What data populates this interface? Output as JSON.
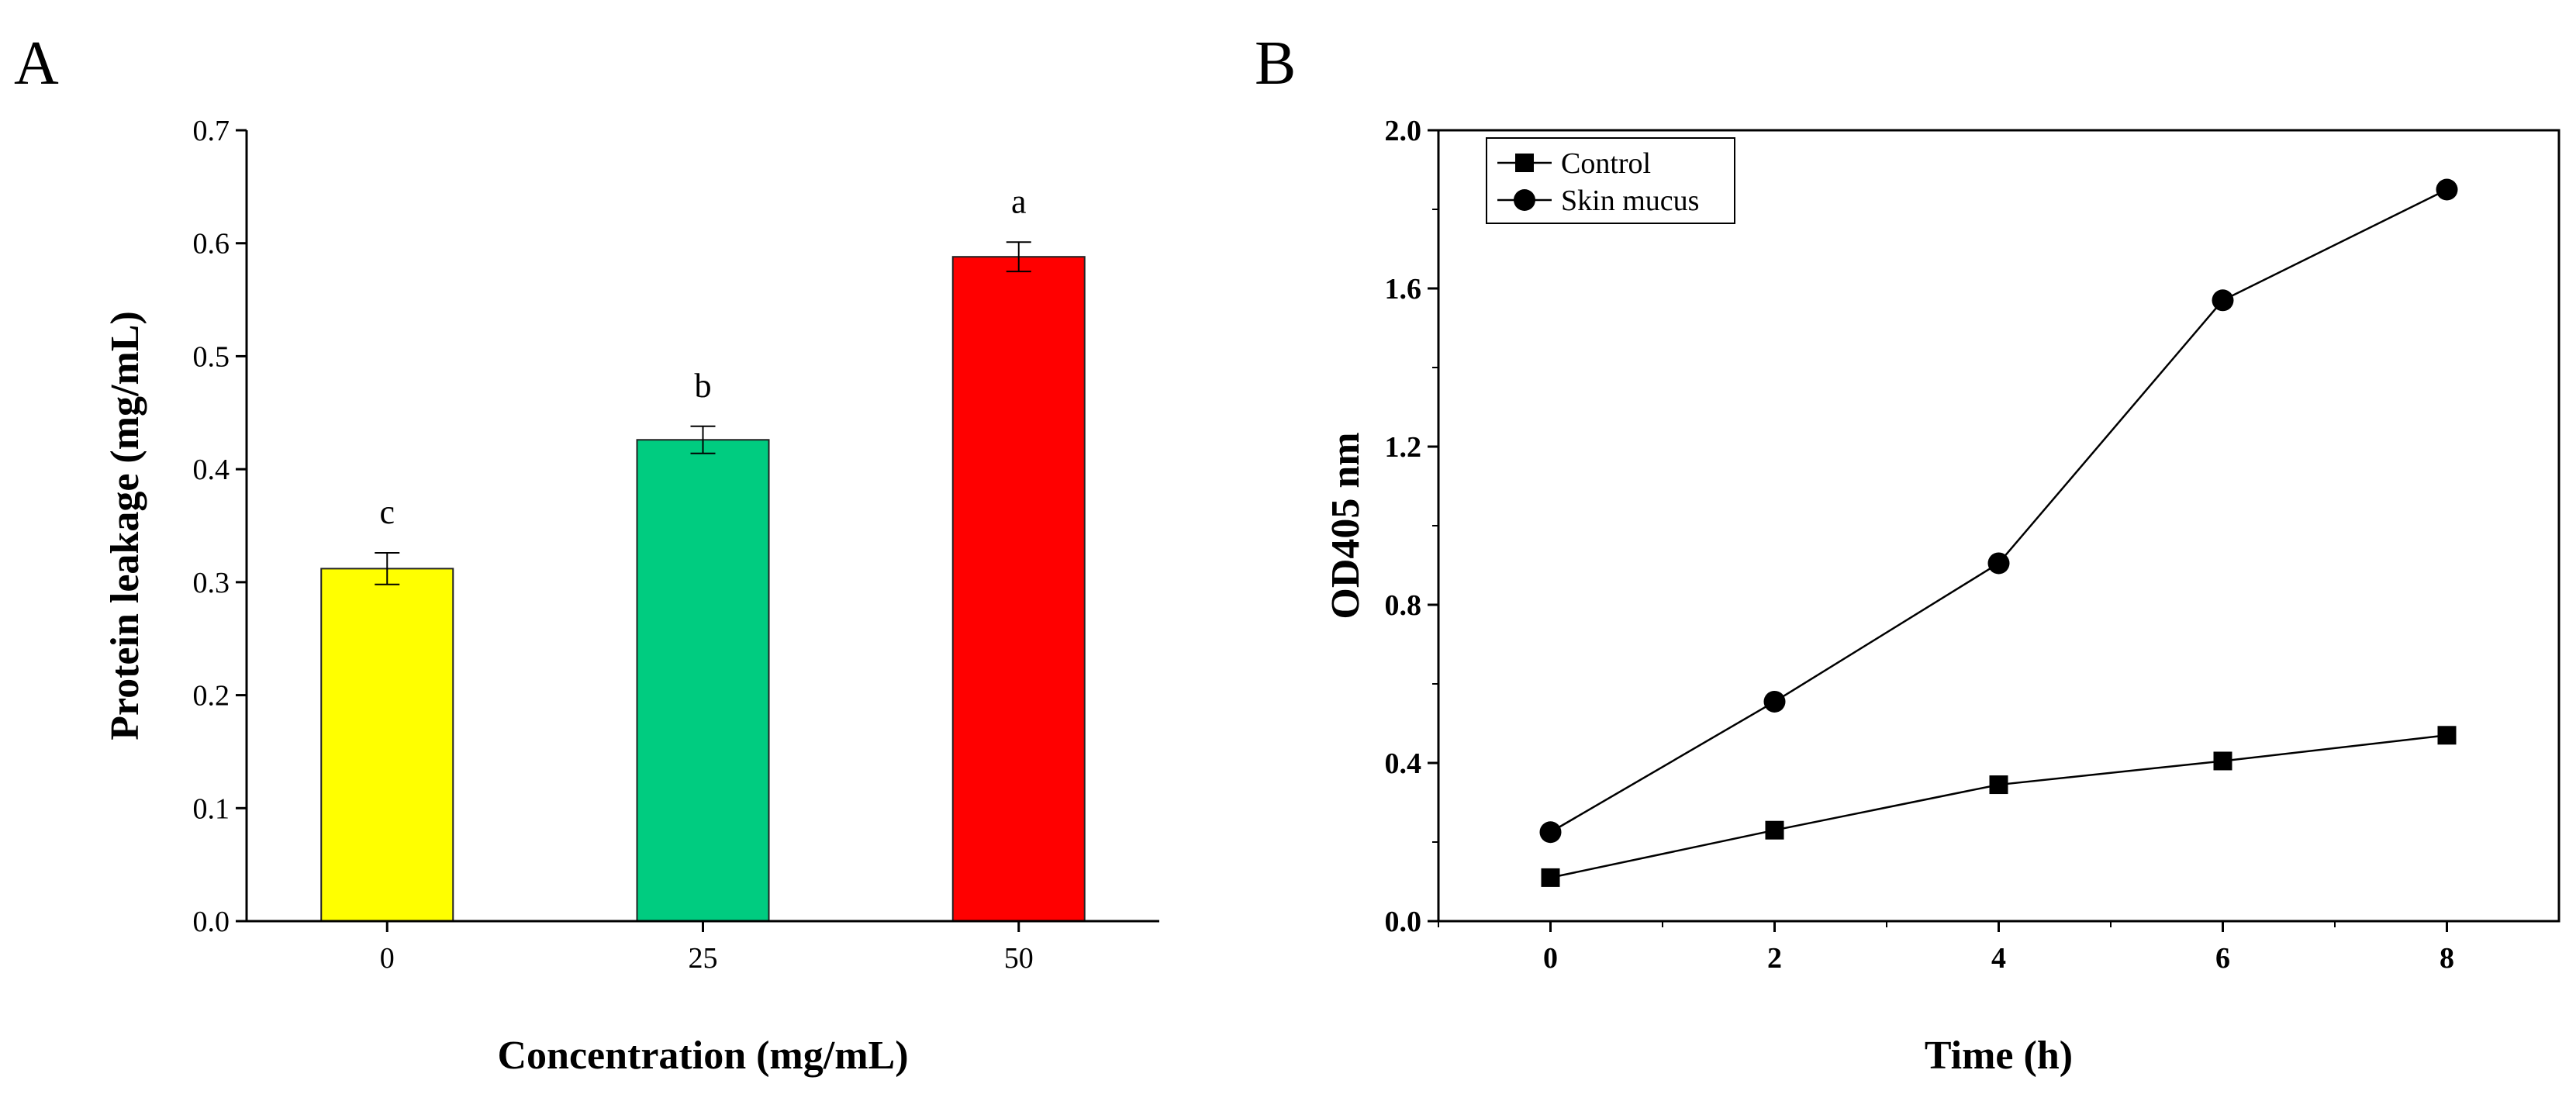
{
  "chart_data": [
    {
      "panel_label": "A",
      "type": "bar",
      "categories": [
        "0",
        "25",
        "50"
      ],
      "values": [
        0.312,
        0.426,
        0.588
      ],
      "errors": [
        0.014,
        0.012,
        0.013
      ],
      "significance": [
        "c",
        "b",
        "a"
      ],
      "colors": [
        "#FFFF00",
        "#00CC80",
        "#FF0000"
      ],
      "xlabel": "Concentration (mg/mL)",
      "ylabel": "Protein leakage (mg/mL)",
      "ylim": [
        0,
        0.7
      ],
      "yticks": [
        "0.0",
        "0.1",
        "0.2",
        "0.3",
        "0.4",
        "0.5",
        "0.6",
        "0.7"
      ],
      "grid": false
    },
    {
      "panel_label": "B",
      "type": "line",
      "x": [
        0,
        2,
        4,
        6,
        8
      ],
      "xlim": [
        -1,
        9
      ],
      "xticks": [
        "0",
        "2",
        "4",
        "6",
        "8"
      ],
      "ylim": [
        0,
        2.0
      ],
      "yticks": [
        "0.0",
        "0.4",
        "0.8",
        "1.2",
        "1.6",
        "2.0"
      ],
      "xlabel": "Time (h)",
      "ylabel": "OD405 nm",
      "legend_position": "top-left",
      "grid": false,
      "series": [
        {
          "name": "Control",
          "marker": "square",
          "values": [
            0.11,
            0.23,
            0.345,
            0.405,
            0.47
          ]
        },
        {
          "name": "Skin mucus",
          "marker": "circle",
          "values": [
            0.225,
            0.555,
            0.905,
            1.57,
            1.85
          ]
        }
      ]
    }
  ]
}
